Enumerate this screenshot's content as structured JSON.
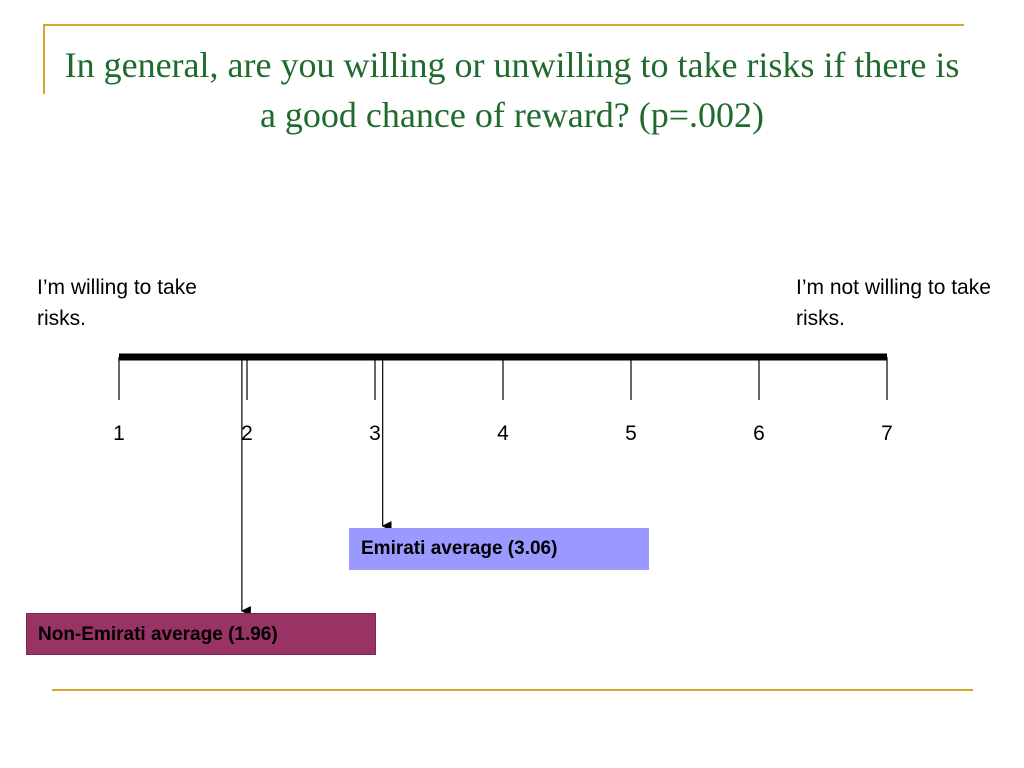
{
  "slide": {
    "title": "In general, are you willing or unwilling to take risks if there is a good chance of reward? (p=.002)",
    "left_label": "I’m willing to take risks.",
    "right_label": "I’m not willing to take risks.",
    "accent_color": "#d4a72c",
    "title_color": "#1f6b2e"
  },
  "scale": {
    "min": 1,
    "max": 7,
    "ticks": [
      "1",
      "2",
      "3",
      "4",
      "5",
      "6",
      "7"
    ]
  },
  "markers": [
    {
      "id": "emirati",
      "label": "Emirati average (3.06)",
      "value": 3.06,
      "color": "#9999ff"
    },
    {
      "id": "non-emirati",
      "label": "Non-Emirati average (1.96)",
      "value": 1.96,
      "color": "#993366"
    }
  ]
}
